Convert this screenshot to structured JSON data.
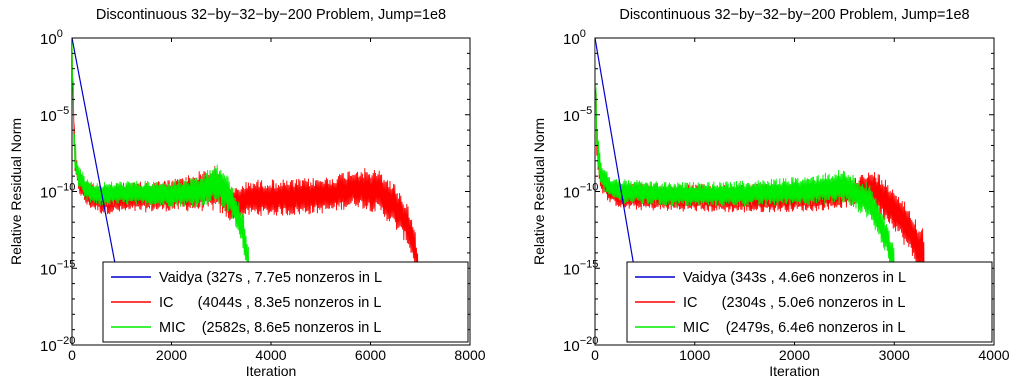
{
  "chart_data": [
    {
      "type": "line",
      "title": "Discontinuous 32−by−32−by−200 Problem, Jump=1e8",
      "xlabel": "Iteration",
      "ylabel": "Relative Residual Norm",
      "xlim": [
        0,
        8000
      ],
      "ylim_log10": [
        -20,
        0
      ],
      "y_scale": "log",
      "xticks": [
        "0",
        "2000",
        "4000",
        "6000",
        "8000"
      ],
      "yticks": [
        {
          "base": "10",
          "exp": "0"
        },
        {
          "base": "10",
          "exp": "−5"
        },
        {
          "base": "10",
          "exp": "−10"
        },
        {
          "base": "10",
          "exp": "−15"
        },
        {
          "base": "10",
          "exp": "−20"
        }
      ],
      "legend_position": "bottom-right",
      "series": [
        {
          "name": "Vaidya (327s , 7.7e5 nonzeros in L",
          "color": "#0000cc",
          "shape": "vaidya",
          "x_end": 1000,
          "y_end_log10": -17
        },
        {
          "name": "IC      (4044s , 8.3e5 nonzeros in L",
          "color": "#ff0000",
          "shape": "ic",
          "x_end": 6950,
          "y_end_log10": -15.5,
          "envelope": [
            [
              0,
              0,
              -1
            ],
            [
              60,
              -7,
              -9
            ],
            [
              150,
              -8.6,
              -10.2
            ],
            [
              300,
              -9.3,
              -11
            ],
            [
              600,
              -9.5,
              -11.5
            ],
            [
              1200,
              -9.4,
              -11.4
            ],
            [
              2000,
              -9.2,
              -11.3
            ],
            [
              2900,
              -8.3,
              -11.3
            ],
            [
              3200,
              -9.8,
              -12
            ],
            [
              3600,
              -9.2,
              -11.6
            ],
            [
              4400,
              -9.2,
              -11.6
            ],
            [
              5200,
              -9,
              -11.4
            ],
            [
              5700,
              -8.4,
              -11
            ],
            [
              6200,
              -8.6,
              -11.5
            ],
            [
              6500,
              -9.5,
              -12.5
            ],
            [
              6750,
              -10.8,
              -13.5
            ],
            [
              6900,
              -12.5,
              -15
            ],
            [
              6950,
              -14,
              -15.5
            ]
          ]
        },
        {
          "name": "MIC    (2582s, 8.6e5 nonzeros in L",
          "color": "#00ee00",
          "shape": "mic",
          "x_end": 3550,
          "y_end_log10": -15.5,
          "envelope": [
            [
              0,
              0,
              -1
            ],
            [
              40,
              -5.5,
              -8
            ],
            [
              100,
              -7.8,
              -9.5
            ],
            [
              250,
              -9,
              -10.6
            ],
            [
              500,
              -9.4,
              -11
            ],
            [
              1000,
              -9.3,
              -10.9
            ],
            [
              1800,
              -9.3,
              -11
            ],
            [
              2500,
              -9.1,
              -11
            ],
            [
              2900,
              -8.2,
              -10.8
            ],
            [
              3050,
              -8.4,
              -11.2
            ],
            [
              3250,
              -9.8,
              -12
            ],
            [
              3450,
              -11.5,
              -14
            ],
            [
              3550,
              -13.5,
              -15.5
            ]
          ]
        }
      ]
    },
    {
      "type": "line",
      "title": "Discontinuous 32−by−32−by−200 Problem, Jump=1e8",
      "xlabel": "Iteration",
      "ylabel": "Relative Residual Norm",
      "xlim": [
        0,
        4000
      ],
      "ylim_log10": [
        -20,
        0
      ],
      "y_scale": "log",
      "xticks": [
        "0",
        "1000",
        "2000",
        "3000",
        "4000"
      ],
      "yticks": [
        {
          "base": "10",
          "exp": "0"
        },
        {
          "base": "10",
          "exp": "−5"
        },
        {
          "base": "10",
          "exp": "−10"
        },
        {
          "base": "10",
          "exp": "−15"
        },
        {
          "base": "10",
          "exp": "−20"
        }
      ],
      "legend_position": "bottom-right",
      "series": [
        {
          "name": "Vaidya (343s , 4.6e6 nonzeros in L",
          "color": "#0000cc",
          "shape": "vaidya",
          "x_end": 420,
          "y_end_log10": -16
        },
        {
          "name": "IC      (2304s , 5.0e6 nonzeros in L",
          "color": "#ff0000",
          "shape": "ic",
          "x_end": 3300,
          "y_end_log10": -16,
          "envelope": [
            [
              0,
              0,
              -1
            ],
            [
              20,
              -6,
              -8.5
            ],
            [
              60,
              -8.5,
              -10
            ],
            [
              150,
              -9.2,
              -10.8
            ],
            [
              300,
              -9.4,
              -11.2
            ],
            [
              800,
              -9.5,
              -11.3
            ],
            [
              1500,
              -9.5,
              -11.4
            ],
            [
              2200,
              -9.5,
              -11.3
            ],
            [
              2600,
              -9,
              -11
            ],
            [
              2800,
              -8.6,
              -11.2
            ],
            [
              3000,
              -9.6,
              -12.5
            ],
            [
              3150,
              -11,
              -14
            ],
            [
              3300,
              -12.5,
              -16
            ]
          ]
        },
        {
          "name": "MIC    (2479s, 6.4e6 nonzeros in L",
          "color": "#00ee00",
          "shape": "mic",
          "x_end": 3000,
          "y_end_log10": -16,
          "envelope": [
            [
              0,
              0,
              -1
            ],
            [
              20,
              -5.5,
              -8
            ],
            [
              60,
              -8,
              -9.8
            ],
            [
              150,
              -9,
              -10.5
            ],
            [
              300,
              -9.2,
              -10.8
            ],
            [
              800,
              -9.4,
              -11
            ],
            [
              1500,
              -9.3,
              -11
            ],
            [
              2100,
              -9,
              -10.9
            ],
            [
              2500,
              -8.5,
              -10.8
            ],
            [
              2750,
              -9.5,
              -11.8
            ],
            [
              2900,
              -11.5,
              -13.8
            ],
            [
              3000,
              -13.5,
              -16
            ]
          ]
        }
      ]
    }
  ]
}
